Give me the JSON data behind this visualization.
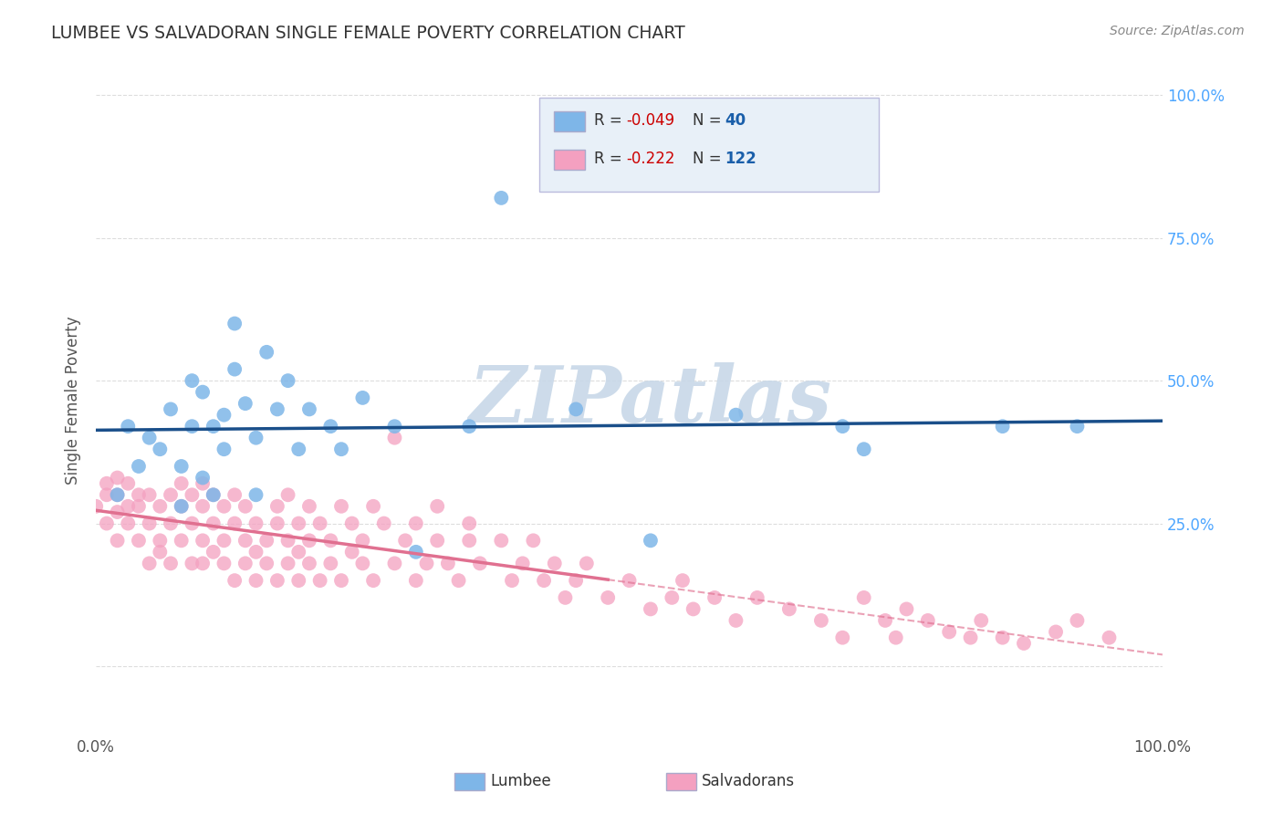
{
  "title": "LUMBEE VS SALVADORAN SINGLE FEMALE POVERTY CORRELATION CHART",
  "source": "Source: ZipAtlas.com",
  "ylabel": "Single Female Poverty",
  "yticks": [
    0.0,
    0.25,
    0.5,
    0.75,
    1.0
  ],
  "ytick_labels": [
    "",
    "25.0%",
    "50.0%",
    "75.0%",
    "100.0%"
  ],
  "xlim": [
    0.0,
    1.0
  ],
  "ylim": [
    -0.12,
    1.05
  ],
  "lumbee_R": -0.049,
  "lumbee_N": 40,
  "salvadoran_R": -0.222,
  "salvadoran_N": 122,
  "lumbee_color": "#7EB6E8",
  "salvadoran_color": "#F4A0C0",
  "lumbee_line_color": "#1A4F8A",
  "salvadoran_line_color": "#E07090",
  "lumbee_x": [
    0.02,
    0.03,
    0.04,
    0.05,
    0.06,
    0.07,
    0.08,
    0.08,
    0.09,
    0.09,
    0.1,
    0.1,
    0.11,
    0.11,
    0.12,
    0.12,
    0.13,
    0.13,
    0.14,
    0.15,
    0.15,
    0.16,
    0.17,
    0.18,
    0.19,
    0.2,
    0.22,
    0.23,
    0.25,
    0.28,
    0.3,
    0.35,
    0.38,
    0.45,
    0.52,
    0.6,
    0.7,
    0.72,
    0.85,
    0.92
  ],
  "lumbee_y": [
    0.3,
    0.42,
    0.35,
    0.4,
    0.38,
    0.45,
    0.35,
    0.28,
    0.5,
    0.42,
    0.33,
    0.48,
    0.3,
    0.42,
    0.38,
    0.44,
    0.6,
    0.52,
    0.46,
    0.4,
    0.3,
    0.55,
    0.45,
    0.5,
    0.38,
    0.45,
    0.42,
    0.38,
    0.47,
    0.42,
    0.2,
    0.42,
    0.82,
    0.45,
    0.22,
    0.44,
    0.42,
    0.38,
    0.42,
    0.42
  ],
  "salvadoran_x": [
    0.0,
    0.01,
    0.01,
    0.01,
    0.02,
    0.02,
    0.02,
    0.02,
    0.03,
    0.03,
    0.03,
    0.04,
    0.04,
    0.04,
    0.05,
    0.05,
    0.05,
    0.06,
    0.06,
    0.06,
    0.07,
    0.07,
    0.07,
    0.08,
    0.08,
    0.08,
    0.09,
    0.09,
    0.09,
    0.1,
    0.1,
    0.1,
    0.1,
    0.11,
    0.11,
    0.11,
    0.12,
    0.12,
    0.12,
    0.13,
    0.13,
    0.13,
    0.14,
    0.14,
    0.14,
    0.15,
    0.15,
    0.15,
    0.16,
    0.16,
    0.17,
    0.17,
    0.17,
    0.18,
    0.18,
    0.18,
    0.19,
    0.19,
    0.19,
    0.2,
    0.2,
    0.2,
    0.21,
    0.21,
    0.22,
    0.22,
    0.23,
    0.23,
    0.24,
    0.24,
    0.25,
    0.25,
    0.26,
    0.26,
    0.27,
    0.28,
    0.28,
    0.29,
    0.3,
    0.3,
    0.31,
    0.32,
    0.32,
    0.33,
    0.34,
    0.35,
    0.35,
    0.36,
    0.38,
    0.39,
    0.4,
    0.41,
    0.42,
    0.43,
    0.44,
    0.45,
    0.46,
    0.48,
    0.5,
    0.52,
    0.54,
    0.55,
    0.56,
    0.58,
    0.6,
    0.62,
    0.65,
    0.68,
    0.7,
    0.72,
    0.74,
    0.75,
    0.76,
    0.78,
    0.8,
    0.82,
    0.83,
    0.85,
    0.87,
    0.9,
    0.92,
    0.95
  ],
  "salvadoran_y": [
    0.28,
    0.3,
    0.32,
    0.25,
    0.27,
    0.3,
    0.22,
    0.33,
    0.28,
    0.32,
    0.25,
    0.3,
    0.22,
    0.28,
    0.3,
    0.18,
    0.25,
    0.22,
    0.28,
    0.2,
    0.25,
    0.3,
    0.18,
    0.22,
    0.28,
    0.32,
    0.18,
    0.25,
    0.3,
    0.22,
    0.28,
    0.18,
    0.32,
    0.2,
    0.25,
    0.3,
    0.18,
    0.22,
    0.28,
    0.15,
    0.25,
    0.3,
    0.18,
    0.22,
    0.28,
    0.15,
    0.25,
    0.2,
    0.18,
    0.22,
    0.28,
    0.15,
    0.25,
    0.18,
    0.22,
    0.3,
    0.15,
    0.25,
    0.2,
    0.18,
    0.22,
    0.28,
    0.15,
    0.25,
    0.18,
    0.22,
    0.28,
    0.15,
    0.25,
    0.2,
    0.18,
    0.22,
    0.28,
    0.15,
    0.25,
    0.18,
    0.4,
    0.22,
    0.25,
    0.15,
    0.18,
    0.22,
    0.28,
    0.18,
    0.15,
    0.22,
    0.25,
    0.18,
    0.22,
    0.15,
    0.18,
    0.22,
    0.15,
    0.18,
    0.12,
    0.15,
    0.18,
    0.12,
    0.15,
    0.1,
    0.12,
    0.15,
    0.1,
    0.12,
    0.08,
    0.12,
    0.1,
    0.08,
    0.05,
    0.12,
    0.08,
    0.05,
    0.1,
    0.08,
    0.06,
    0.05,
    0.08,
    0.05,
    0.04,
    0.06,
    0.08,
    0.05
  ],
  "background_color": "#ffffff",
  "grid_color": "#dddddd",
  "watermark_text": "ZIPatlas",
  "watermark_color": "#c8d8e8",
  "legend_box_color": "#e8f0f8"
}
